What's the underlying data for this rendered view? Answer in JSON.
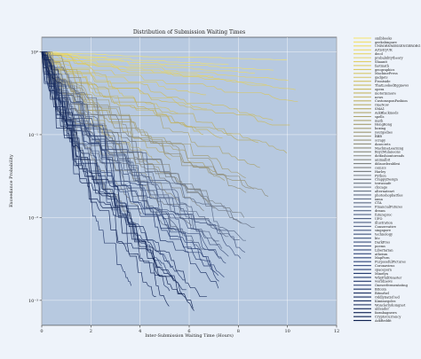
{
  "chart_data": {
    "type": "line",
    "title": "Distribution of Submission Waiting Times",
    "xlabel": "Inter-Submission Waiting Time (Hours)",
    "ylabel": "Exceedance Probability",
    "xlim": [
      0,
      12
    ],
    "ylim": [
      0.0005,
      1.5
    ],
    "y_scale": "log",
    "x_ticks": [
      0,
      2,
      4,
      6,
      8,
      10,
      12
    ],
    "y_ticks": [
      {
        "value": 1,
        "label": "10⁰"
      },
      {
        "value": 0.1,
        "label": "10⁻¹"
      },
      {
        "value": 0.01,
        "label": "10⁻²"
      },
      {
        "value": 0.001,
        "label": "10⁻³"
      }
    ],
    "grid": true,
    "legend_position": "right",
    "colormap": [
      "#0d1f4f",
      "#2e4478",
      "#5c6b88",
      "#8c8c7f",
      "#c4b665",
      "#f5e36a"
    ],
    "plot_background": "#b7c9e0",
    "series": [
      {
        "name": "smlbbooks",
        "end_prob": 0.8
      },
      {
        "name": "geeksbinpure",
        "end_prob": 0.7
      },
      {
        "name": "UNBORNMESSENGERORG",
        "end_prob": 0.6
      },
      {
        "name": "ArtistryUK",
        "end_prob": 0.55
      },
      {
        "name": "decd",
        "end_prob": 0.5
      },
      {
        "name": "probabilitytheory",
        "end_prob": 0.45
      },
      {
        "name": "Shaanit",
        "end_prob": 0.4
      },
      {
        "name": "fastmath",
        "end_prob": 0.35
      },
      {
        "name": "geographics",
        "end_prob": 0.3
      },
      {
        "name": "MachinePress",
        "end_prob": 0.25
      },
      {
        "name": "gadgets",
        "end_prob": 0.2
      },
      {
        "name": "Frontside",
        "end_prob": 0.18
      },
      {
        "name": "ThatLookedEggnews",
        "end_prob": 0.15
      },
      {
        "name": "opera",
        "end_prob": 0.12
      },
      {
        "name": "motorinmore",
        "end_prob": 0.1
      },
      {
        "name": "news",
        "end_prob": 0.09
      },
      {
        "name": "CustomsponFashion",
        "end_prob": 0.08
      },
      {
        "name": "OneNow",
        "end_prob": 0.07
      },
      {
        "name": "SMA1",
        "end_prob": 0.06
      },
      {
        "name": "AskBlackmods",
        "end_prob": 0.05
      },
      {
        "name": "spells",
        "end_prob": 0.045
      },
      {
        "name": "math",
        "end_prob": 0.04
      },
      {
        "name": "HongKong",
        "end_prob": 0.035
      },
      {
        "name": "boxing",
        "end_prob": 0.03
      },
      {
        "name": "youtgodies",
        "end_prob": 0.028
      },
      {
        "name": "BBB",
        "end_prob": 0.025
      },
      {
        "name": "scrapy",
        "end_prob": 0.022
      },
      {
        "name": "dosecrets",
        "end_prob": 0.02
      },
      {
        "name": "MachineLearning",
        "end_prob": 0.018
      },
      {
        "name": "BoyzMulaneons",
        "end_prob": 0.016
      },
      {
        "name": "dotfashiontoreads",
        "end_prob": 0.015
      },
      {
        "name": "animalbit",
        "end_prob": 0.014
      },
      {
        "name": "ddisorderablesi",
        "end_prob": 0.013
      },
      {
        "name": "comics",
        "end_prob": 0.012
      },
      {
        "name": "Harley",
        "end_prob": 0.011
      },
      {
        "name": "Python",
        "end_prob": 0.01
      },
      {
        "name": "CrappyDesign",
        "end_prob": 0.009
      },
      {
        "name": "terrassafe",
        "end_prob": 0.0085
      },
      {
        "name": "chicago",
        "end_prob": 0.008
      },
      {
        "name": "alternateart",
        "end_prob": 0.0075
      },
      {
        "name": "photoshopbattles",
        "end_prob": 0.007
      },
      {
        "name": "iama",
        "end_prob": 0.0065
      },
      {
        "name": "CTA",
        "end_prob": 0.006
      },
      {
        "name": "FinancialFutures",
        "end_prob": 0.0055
      },
      {
        "name": "dream",
        "end_prob": 0.005
      },
      {
        "name": "futureproc",
        "end_prob": 0.0048
      },
      {
        "name": "UFO",
        "end_prob": 0.0045
      },
      {
        "name": "illustration",
        "end_prob": 0.0042
      },
      {
        "name": "Conservative",
        "end_prob": 0.004
      },
      {
        "name": "singapore",
        "end_prob": 0.0038
      },
      {
        "name": "technology",
        "end_prob": 0.0036
      },
      {
        "name": "btc",
        "end_prob": 0.0034
      },
      {
        "name": "DarkPros",
        "end_prob": 0.0032
      },
      {
        "name": "poems",
        "end_prob": 0.003
      },
      {
        "name": "Libertarian",
        "end_prob": 0.0028
      },
      {
        "name": "atheism",
        "end_prob": 0.0026
      },
      {
        "name": "MapPorn",
        "end_prob": 0.0024
      },
      {
        "name": "PurposefulPictures",
        "end_prob": 0.0022
      },
      {
        "name": "Coronavirus",
        "end_prob": 0.002
      },
      {
        "name": "spaceporn",
        "end_prob": 0.0019
      },
      {
        "name": "Minefyn",
        "end_prob": 0.0018
      },
      {
        "name": "WhyPhilDisaster",
        "end_prob": 0.0017
      },
      {
        "name": "worldnews",
        "end_prob": 0.0016
      },
      {
        "name": "Oneserfermentating",
        "end_prob": 0.0015
      },
      {
        "name": "Bitcoin",
        "end_prob": 0.0014
      },
      {
        "name": "Bitmrhel",
        "end_prob": 0.0013
      },
      {
        "name": "OddlySatisf ied",
        "end_prob": 0.0012
      },
      {
        "name": "Kimimegoles",
        "end_prob": 0.0011
      },
      {
        "name": "Wonclerlydoingnot",
        "end_prob": 0.001
      },
      {
        "name": "aldeador",
        "end_prob": 0.0009
      },
      {
        "name": "farmbagnews",
        "end_prob": 0.00085
      },
      {
        "name": "CryptoCurrency",
        "end_prob": 0.0008
      },
      {
        "name": "AskReddit",
        "end_prob": 0.00075
      }
    ]
  }
}
